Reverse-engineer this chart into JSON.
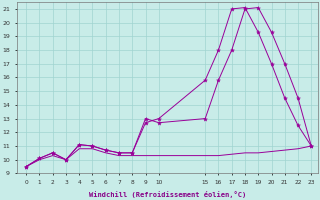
{
  "xlabel": "Windchill (Refroidissement éolien,°C)",
  "bg_color": "#c8ece8",
  "grid_color": "#a0d4d0",
  "line_color": "#990099",
  "ylim": [
    9,
    21.5
  ],
  "yticks": [
    9,
    10,
    11,
    12,
    13,
    14,
    15,
    16,
    17,
    18,
    19,
    20,
    21
  ],
  "line1_x": [
    0,
    1,
    2,
    3,
    4,
    5,
    6,
    7,
    8,
    9,
    10,
    15,
    16,
    17,
    18,
    19,
    20,
    21,
    22,
    23
  ],
  "line1_y": [
    9.5,
    10.1,
    10.5,
    10.0,
    11.1,
    11.0,
    10.7,
    10.5,
    10.5,
    13.0,
    12.7,
    13.0,
    15.8,
    18.0,
    21.0,
    21.1,
    19.3,
    17.0,
    14.5,
    11.0
  ],
  "line2_x": [
    0,
    1,
    2,
    3,
    4,
    5,
    6,
    7,
    8,
    9,
    10,
    15,
    16,
    17,
    18,
    19,
    20,
    21,
    22,
    23
  ],
  "line2_y": [
    9.5,
    10.1,
    10.5,
    10.0,
    11.1,
    11.0,
    10.7,
    10.5,
    10.5,
    12.7,
    13.0,
    15.8,
    18.0,
    21.0,
    21.1,
    19.3,
    17.0,
    14.5,
    12.5,
    11.0
  ],
  "line3_x": [
    0,
    1,
    2,
    3,
    4,
    5,
    6,
    7,
    8,
    9,
    10,
    15,
    16,
    17,
    18,
    19,
    20,
    21,
    22,
    23
  ],
  "line3_y": [
    9.5,
    10.0,
    10.3,
    10.0,
    10.8,
    10.8,
    10.5,
    10.3,
    10.3,
    10.3,
    10.3,
    10.3,
    10.3,
    10.4,
    10.5,
    10.5,
    10.6,
    10.7,
    10.8,
    11.0
  ],
  "xtick_labels_left": [
    "0",
    "1",
    "2",
    "3",
    "4",
    "5",
    "6",
    "7",
    "8",
    "9",
    "10"
  ],
  "xtick_labels_right": [
    "15",
    "16",
    "17",
    "18",
    "19",
    "20",
    "21",
    "22",
    "23"
  ]
}
